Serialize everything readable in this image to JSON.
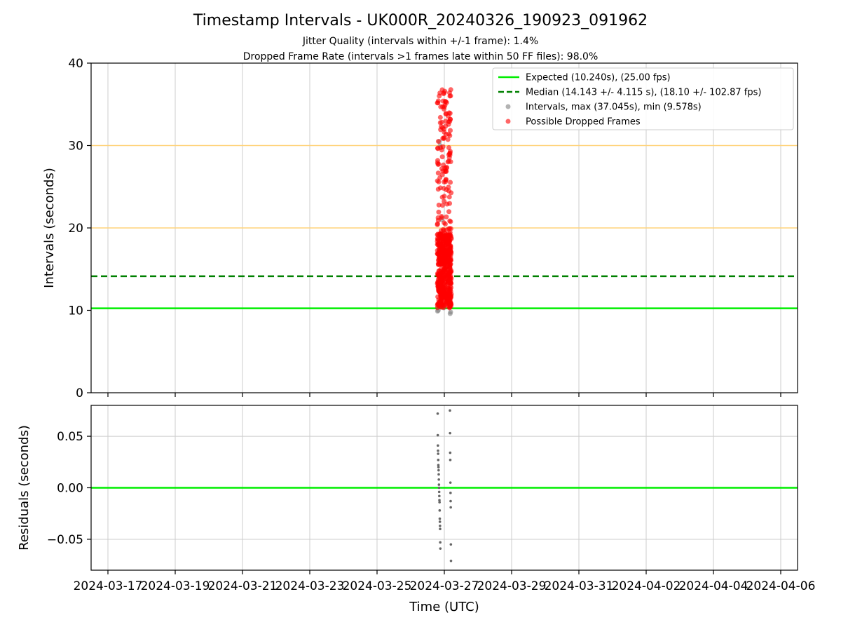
{
  "chart_data": {
    "type": "scatter",
    "title": "Timestamp Intervals - UK000R_20240326_190923_091962",
    "subtitle_lines": [
      "Jitter Quality (intervals within +/-1 frame): 1.4%",
      "Dropped Frame Rate (intervals >1 frames late within 50 FF files): 98.0%"
    ],
    "xlabel": "Time (UTC)",
    "x_ticks": [
      "2024-03-17",
      "2024-03-19",
      "2024-03-21",
      "2024-03-23",
      "2024-03-25",
      "2024-03-27",
      "2024-03-29",
      "2024-03-31",
      "2024-04-02",
      "2024-04-04",
      "2024-04-06"
    ],
    "xlim": [
      "2024-03-16T12:00",
      "2024-04-06T12:00"
    ],
    "grid": true,
    "legend_position": "upper right",
    "colors": {
      "expected": "#00ee00",
      "median": "#008000",
      "intervals": "#808080",
      "dropped": "#ff0000",
      "threshold": "#ffd37a",
      "residual_points": "#666666",
      "grid": "#cccccc"
    },
    "top_panel": {
      "ylabel": "Intervals (seconds)",
      "ylim": [
        0,
        40
      ],
      "y_ticks": [
        "0",
        "10",
        "20",
        "30",
        "40"
      ],
      "expected_interval": 10.24,
      "median_interval": 14.143,
      "threshold_lines": [
        20,
        30
      ],
      "legend": [
        "Expected (10.240s), (25.00 fps)",
        "Median (14.143 +/- 4.115 s), (18.10 +/- 102.87 fps)",
        "Intervals, max (37.045s), min (9.578s)",
        "Possible Dropped Frames"
      ],
      "max_interval": 37.045,
      "min_interval": 9.578,
      "normal_intervals": [
        {
          "x": "2024-03-26T19:10",
          "y": 9.9
        },
        {
          "x": "2024-03-26T19:40",
          "y": 10.0
        },
        {
          "x": "2024-03-26T20:30",
          "y": 30.5
        },
        {
          "x": "2024-03-26T21:00",
          "y": 30.0
        },
        {
          "x": "2024-03-26T22:10",
          "y": 21.0
        },
        {
          "x": "2024-03-26T23:30",
          "y": 10.3
        },
        {
          "x": "2024-03-27T04:10",
          "y": 9.6
        },
        {
          "x": "2024-03-27T04:30",
          "y": 9.8
        }
      ]
    },
    "bottom_panel": {
      "ylabel": "Residuals (seconds)",
      "ylim": [
        -0.08,
        0.08
      ],
      "y_ticks": [
        "−0.05",
        "0.00",
        "0.05"
      ],
      "y_tick_values": [
        -0.05,
        0.0,
        0.05
      ],
      "residuals": [
        {
          "x": "2024-03-26T19:15",
          "y": 0.072
        },
        {
          "x": "2024-03-26T19:20",
          "y": 0.051
        },
        {
          "x": "2024-03-26T19:25",
          "y": 0.041
        },
        {
          "x": "2024-03-26T19:30",
          "y": 0.036
        },
        {
          "x": "2024-03-26T19:35",
          "y": 0.033
        },
        {
          "x": "2024-03-26T19:40",
          "y": 0.027
        },
        {
          "x": "2024-03-26T19:45",
          "y": 0.022
        },
        {
          "x": "2024-03-26T19:50",
          "y": 0.02
        },
        {
          "x": "2024-03-26T19:55",
          "y": 0.017
        },
        {
          "x": "2024-03-26T20:00",
          "y": 0.013
        },
        {
          "x": "2024-03-26T20:05",
          "y": 0.008
        },
        {
          "x": "2024-03-26T20:10",
          "y": 0.003
        },
        {
          "x": "2024-03-26T20:15",
          "y": 0.0
        },
        {
          "x": "2024-03-26T20:20",
          "y": -0.004
        },
        {
          "x": "2024-03-26T20:25",
          "y": -0.008
        },
        {
          "x": "2024-03-26T20:30",
          "y": -0.012
        },
        {
          "x": "2024-03-26T20:35",
          "y": -0.014
        },
        {
          "x": "2024-03-26T20:40",
          "y": -0.022
        },
        {
          "x": "2024-03-26T20:45",
          "y": -0.03
        },
        {
          "x": "2024-03-26T20:50",
          "y": -0.033
        },
        {
          "x": "2024-03-26T20:55",
          "y": -0.037
        },
        {
          "x": "2024-03-26T21:00",
          "y": -0.04
        },
        {
          "x": "2024-03-26T21:05",
          "y": -0.053
        },
        {
          "x": "2024-03-26T21:10",
          "y": -0.059
        },
        {
          "x": "2024-03-27T04:00",
          "y": 0.075
        },
        {
          "x": "2024-03-27T04:05",
          "y": 0.053
        },
        {
          "x": "2024-03-27T04:10",
          "y": 0.034
        },
        {
          "x": "2024-03-27T04:15",
          "y": 0.027
        },
        {
          "x": "2024-03-27T04:20",
          "y": 0.005
        },
        {
          "x": "2024-03-27T04:25",
          "y": -0.005
        },
        {
          "x": "2024-03-27T04:30",
          "y": -0.013
        },
        {
          "x": "2024-03-27T04:35",
          "y": -0.019
        },
        {
          "x": "2024-03-27T04:40",
          "y": -0.055
        },
        {
          "x": "2024-03-27T04:45",
          "y": -0.071
        }
      ]
    }
  }
}
